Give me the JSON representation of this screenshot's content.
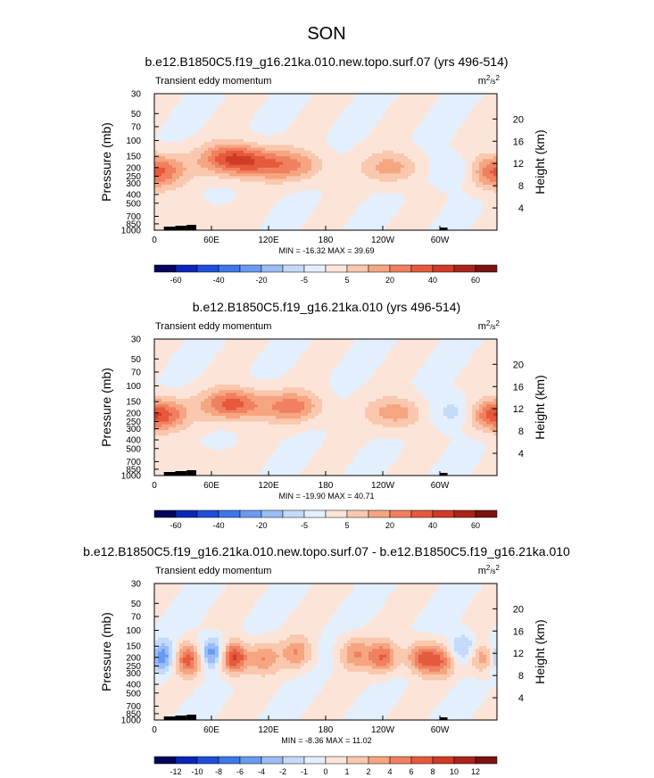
{
  "page_title": "SON",
  "chart_data": [
    {
      "type": "heatmap",
      "title": "b.e12.B1850C5.f19_g16.21ka.010.new.topo.surf.07 (yrs 496-514)",
      "left_label": "Transient eddy momentum",
      "units_base": "m",
      "units_sup1": "2",
      "units_mid": "/s",
      "units_sup2": "2",
      "ylabel": "Pressure (mb)",
      "ylabel_right": "Height (km)",
      "pressure_ticks": [
        "30",
        "50",
        "70",
        "100",
        "150",
        "200",
        "250",
        "300",
        "400",
        "500",
        "700",
        "850",
        "1000"
      ],
      "height_ticks": [
        "20",
        "16",
        "12",
        "8",
        "4"
      ],
      "x_ticks": [
        "0",
        "60E",
        "120E",
        "180",
        "120W",
        "60W"
      ],
      "stats": "MIN = -16.32  MAX = 39.69",
      "colorbar_labels": [
        "-60",
        "-40",
        "-20",
        "-5",
        "5",
        "20",
        "40",
        "60"
      ],
      "colorbar_colors": [
        "#05055c",
        "#0a26b8",
        "#1f4fd9",
        "#3f76e8",
        "#6a9af0",
        "#9bbdf5",
        "#c4daf9",
        "#e3effd",
        "#fce5d8",
        "#f9c8ae",
        "#f6a581",
        "#f08060",
        "#e55a3c",
        "#d03a26",
        "#a8251a",
        "#7a1210"
      ],
      "peaks": [
        {
          "lon": 2,
          "p": 200,
          "v": 25
        },
        {
          "lon": 80,
          "p": 160,
          "v": 40
        },
        {
          "lon": 110,
          "p": 180,
          "v": 22
        },
        {
          "lon": 148,
          "p": 190,
          "v": 24
        },
        {
          "lon": 250,
          "p": 200,
          "v": 22
        },
        {
          "lon": 320,
          "p": 220,
          "v": -16
        },
        {
          "lon": 355,
          "p": 250,
          "v": 22
        },
        {
          "lon": 45,
          "p": 780,
          "v": 8
        }
      ]
    },
    {
      "type": "heatmap",
      "title": "b.e12.B1850C5.f19_g16.21ka.010 (yrs 496-514)",
      "left_label": "Transient eddy momentum",
      "units_base": "m",
      "units_sup1": "2",
      "units_mid": "/s",
      "units_sup2": "2",
      "ylabel": "Pressure (mb)",
      "ylabel_right": "Height (km)",
      "pressure_ticks": [
        "30",
        "50",
        "70",
        "100",
        "150",
        "200",
        "250",
        "300",
        "400",
        "500",
        "700",
        "850",
        "1000"
      ],
      "height_ticks": [
        "20",
        "16",
        "12",
        "8",
        "4"
      ],
      "x_ticks": [
        "0",
        "60E",
        "120E",
        "180",
        "120W",
        "60W"
      ],
      "stats": "MIN = -19.90  MAX = 40.71",
      "colorbar_labels": [
        "-60",
        "-40",
        "-20",
        "-5",
        "5",
        "20",
        "40",
        "60"
      ],
      "colorbar_colors": [
        "#05055c",
        "#0a26b8",
        "#1f4fd9",
        "#3f76e8",
        "#6a9af0",
        "#9bbdf5",
        "#c4daf9",
        "#e3effd",
        "#fce5d8",
        "#f9c8ae",
        "#f6a581",
        "#f08060",
        "#e55a3c",
        "#d03a26",
        "#a8251a",
        "#7a1210"
      ],
      "peaks": [
        {
          "lon": 2,
          "p": 200,
          "v": 28
        },
        {
          "lon": 82,
          "p": 160,
          "v": 40
        },
        {
          "lon": 145,
          "p": 170,
          "v": 30
        },
        {
          "lon": 255,
          "p": 200,
          "v": 24
        },
        {
          "lon": 320,
          "p": 200,
          "v": -20
        },
        {
          "lon": 355,
          "p": 220,
          "v": 24
        },
        {
          "lon": 45,
          "p": 780,
          "v": 8
        }
      ]
    },
    {
      "type": "heatmap",
      "title": "b.e12.B1850C5.f19_g16.21ka.010.new.topo.surf.07 - b.e12.B1850C5.f19_g16.21ka.010",
      "left_label": "Transient eddy momentum",
      "units_base": "m",
      "units_sup1": "2",
      "units_mid": "/s",
      "units_sup2": "2",
      "ylabel": "Pressure (mb)",
      "ylabel_right": "Height (km)",
      "pressure_ticks": [
        "30",
        "50",
        "70",
        "100",
        "150",
        "200",
        "250",
        "300",
        "400",
        "500",
        "700",
        "850",
        "1000"
      ],
      "height_ticks": [
        "20",
        "16",
        "12",
        "8",
        "4"
      ],
      "x_ticks": [
        "0",
        "60E",
        "120E",
        "180",
        "120W",
        "60W"
      ],
      "stats": "MIN = -8.36  MAX = 11.02",
      "colorbar_labels": [
        "-12",
        "-10",
        "-8",
        "-6",
        "-4",
        "-2",
        "-1",
        "0",
        "1",
        "2",
        "4",
        "6",
        "8",
        "10",
        "12"
      ],
      "colorbar_colors": [
        "#05055c",
        "#0a26b8",
        "#1f4fd9",
        "#3f76e8",
        "#6a9af0",
        "#9bbdf5",
        "#c4daf9",
        "#e3effd",
        "#fce5d8",
        "#f9c8ae",
        "#f6a581",
        "#f08060",
        "#e55a3c",
        "#d03a26",
        "#a8251a",
        "#7a1210"
      ],
      "peaks": [
        {
          "lon": 8,
          "p": 200,
          "v": -7
        },
        {
          "lon": 35,
          "p": 210,
          "v": 8
        },
        {
          "lon": 62,
          "p": 180,
          "v": -8
        },
        {
          "lon": 82,
          "p": 200,
          "v": 11
        },
        {
          "lon": 115,
          "p": 200,
          "v": 5
        },
        {
          "lon": 150,
          "p": 180,
          "v": 5
        },
        {
          "lon": 210,
          "p": 180,
          "v": 5
        },
        {
          "lon": 240,
          "p": 200,
          "v": 7
        },
        {
          "lon": 280,
          "p": 200,
          "v": 7
        },
        {
          "lon": 300,
          "p": 220,
          "v": 6
        },
        {
          "lon": 325,
          "p": 160,
          "v": -5
        },
        {
          "lon": 345,
          "p": 200,
          "v": 6
        }
      ]
    }
  ]
}
